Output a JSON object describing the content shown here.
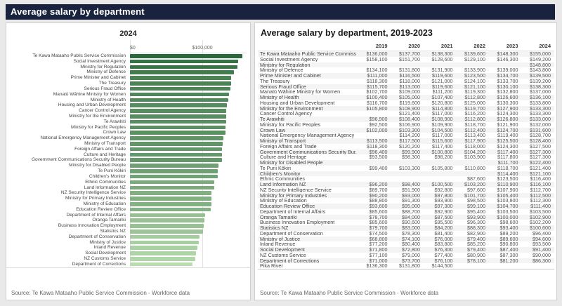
{
  "header": {
    "title": "Average salary by department"
  },
  "panels": {
    "chart": {
      "title": "2024",
      "source": "Source: Te Kawa Mataaho Public Service Commission - Workforce data"
    },
    "table": {
      "title": "Average salary by department, 2019-2023",
      "source": "Source: Te Kawa Mataaho Public Service Commission - Workforce data"
    }
  },
  "chart_data": [
    {
      "type": "bar",
      "orientation": "horizontal",
      "title": "2024",
      "xlim": [
        0,
        161000
      ],
      "x_ticks": [
        {
          "label": "$0",
          "value": 0,
          "align": "left"
        },
        {
          "label": "$100,000",
          "value": 100000,
          "align": "center"
        }
      ],
      "color_scale": {
        "dark": "#2B683C",
        "light": "#B9DDAF",
        "mapping": "value"
      },
      "categories": [
        "Te Kawa Mataaho Public Service Commission",
        "Social Investment Agency",
        "Ministry for Regulation",
        "Ministry of Defence",
        "Prime Minister and Cabinet",
        "The Treasury",
        "Serious Fraud Office",
        "Manatū Wāhine Ministry for Women",
        "Ministry of Health",
        "Housing and Urban Development",
        "Cancer Control Agency",
        "Ministry for the Environment",
        "Te Arawhiti",
        "Ministry for Pacific Peoples",
        "Crown Law",
        "National Emergency Management Agency",
        "Ministry of Transport",
        "Foreign Affairs and Trade",
        "Culture and Heritage",
        "Government Communications Security Bureau",
        "Ministry for Disabled People",
        "Te Puni Kōkiri",
        "Children's Monitor",
        "Ethnic Communities",
        "Land Information NZ",
        "NZ Security Intelligence Service",
        "Ministry for Primary Industries",
        "Ministry of Education",
        "Education Review Office",
        "Department of Internal Affairs",
        "Oranga Tamariki",
        "Business Innovation Employment",
        "Statistics NZ",
        "Department of Conservation",
        "Ministry of Justice",
        "Inland Revenue",
        "Social Development",
        "NZ Customs Service",
        "Department of Corrections"
      ],
      "values": [
        155000,
        149200,
        148800,
        143800,
        139500,
        139200,
        138300,
        137000,
        136100,
        133800,
        133300,
        133300,
        133000,
        132000,
        131600,
        128700,
        128400,
        127500,
        127300,
        127300,
        122400,
        121400,
        121100,
        116400,
        116100,
        112700,
        112500,
        112300,
        111400,
        103500,
        102900,
        102200,
        100600,
        96400,
        94600,
        93500,
        91400,
        90000,
        86300
      ]
    },
    {
      "type": "table",
      "title": "Average salary by department, 2019-2023",
      "columns": [
        "",
        "2019",
        "2020",
        "2021",
        "2022",
        "2023",
        "2024"
      ],
      "rows": [
        [
          "Te Kawa Mataaho Public Service Commiss",
          "$136,000",
          "$137,700",
          "$138,300",
          "$139,600",
          "$148,300",
          "$155,000"
        ],
        [
          "Social Investment Agency",
          "$158,100",
          "$151,700",
          "$128,600",
          "$129,100",
          "$146,300",
          "$149,200"
        ],
        [
          "Ministry for Regulation",
          "",
          "",
          "",
          "",
          "",
          "$148,800"
        ],
        [
          "Ministry of Defence",
          "$134,100",
          "$131,800",
          "$131,900",
          "$133,900",
          "$139,000",
          "$143,800"
        ],
        [
          "Prime Minister and Cabinet",
          "$111,000",
          "$116,500",
          "$119,600",
          "$123,500",
          "$134,700",
          "$139,500"
        ],
        [
          "The Treasury",
          "$118,300",
          "$118,000",
          "$121,000",
          "$124,100",
          "$133,700",
          "$139,200"
        ],
        [
          "Serious Fraud Office",
          "$115,700",
          "$113,000",
          "$119,600",
          "$121,100",
          "$130,100",
          "$138,300"
        ],
        [
          "Manatū Wāhine Ministry for Women",
          "$102,700",
          "$109,000",
          "$111,200",
          "$119,300",
          "$132,800",
          "$137,000"
        ],
        [
          "Ministry of Health",
          "$100,400",
          "$105,000",
          "$107,400",
          "$112,800",
          "$126,600",
          "$136,100"
        ],
        [
          "Housing and Urban Development",
          "$116,700",
          "$119,600",
          "$120,800",
          "$125,000",
          "$130,300",
          "$133,800"
        ],
        [
          "Ministry for the Environment",
          "$105,800",
          "$108,900",
          "$114,800",
          "$119,700",
          "$127,900",
          "$133,300"
        ],
        [
          "Cancer Control Agency",
          "",
          "$121,400",
          "$117,000",
          "$116,200",
          "$124,300",
          "$133,300"
        ],
        [
          "Te Arawhiti",
          "$96,900",
          "$108,400",
          "$108,900",
          "$112,800",
          "$126,800",
          "$133,000"
        ],
        [
          "Ministry for Pacific Peoples",
          "$92,500",
          "$106,900",
          "$109,900",
          "$118,700",
          "$121,900",
          "$132,000"
        ],
        [
          "Crown Law",
          "$102,000",
          "$103,300",
          "$104,500",
          "$112,400",
          "$124,700",
          "$131,600"
        ],
        [
          "National Emergency Management Agency",
          "",
          "$114,200",
          "$117,000",
          "$113,400",
          "$119,400",
          "$128,700"
        ],
        [
          "Ministry of Transport",
          "$113,500",
          "$117,500",
          "$115,600",
          "$117,900",
          "$125,500",
          "$128,400"
        ],
        [
          "Foreign Affairs and Trade",
          "$118,300",
          "$120,200",
          "$117,400",
          "$118,000",
          "$124,300",
          "$127,500"
        ],
        [
          "Government Communications Security Bur.",
          "$96,400",
          "$99,900",
          "$100,800",
          "$104,200",
          "$117,400",
          "$127,300"
        ],
        [
          "Culture and Heritage",
          "$93,500",
          "$98,300",
          "$98,200",
          "$103,900",
          "$117,800",
          "$127,300"
        ],
        [
          "Ministry for Disabled People",
          "",
          "",
          "",
          "",
          "$111,700",
          "$122,400"
        ],
        [
          "Te Puni Kōkiri",
          "$99,400",
          "$103,300",
          "$105,800",
          "$110,800",
          "$118,700",
          "$121,400"
        ],
        [
          "Children's Monitor",
          "",
          "",
          "",
          "",
          "$114,400",
          "$121,100"
        ],
        [
          "Ethnic Communities",
          "",
          "",
          "",
          "$87,600",
          "$123,500",
          "$116,400"
        ],
        [
          "Land Information NZ",
          "$96,200",
          "$98,400",
          "$100,500",
          "$103,200",
          "$110,900",
          "$116,100"
        ],
        [
          "NZ Security Intelligence Service",
          "$89,700",
          "$91,900",
          "$92,800",
          "$97,600",
          "$107,900",
          "$112,700"
        ],
        [
          "Ministry for Primary Industries",
          "$90,200",
          "$93,000",
          "$97,800",
          "$101,700",
          "$105,400",
          "$112,500"
        ],
        [
          "Ministry of Education",
          "$88,800",
          "$91,300",
          "$93,900",
          "$98,500",
          "$103,800",
          "$112,300"
        ],
        [
          "Education Review Office",
          "$93,600",
          "$95,000",
          "$97,300",
          "$99,100",
          "$104,700",
          "$111,400"
        ],
        [
          "Department of Internal Affairs",
          "$85,600",
          "$88,700",
          "$92,900",
          "$95,400",
          "$103,500",
          "$103,500"
        ],
        [
          "Oranga Tamariki",
          "$78,700",
          "$84,000",
          "$87,500",
          "$93,900",
          "$100,000",
          "$102,900"
        ],
        [
          "Business Innovation Employment",
          "$85,600",
          "$90,600",
          "$95,500",
          "$96,300",
          "$98,600",
          "$102,200"
        ],
        [
          "Statistics NZ",
          "$79,700",
          "$83,000",
          "$84,200",
          "$88,300",
          "$93,400",
          "$100,600"
        ],
        [
          "Department of Conservation",
          "$74,500",
          "$78,300",
          "$81,400",
          "$82,900",
          "$89,200",
          "$96,400"
        ],
        [
          "Ministry of Justice",
          "$68,800",
          "$74,100",
          "$76,000",
          "$79,400",
          "$89,600",
          "$94,600"
        ],
        [
          "Inland Revenue",
          "$77,200",
          "$80,400",
          "$83,800",
          "$85,200",
          "$90,800",
          "$93,500"
        ],
        [
          "Social Development",
          "$71,800",
          "$72,800",
          "$76,300",
          "$79,400",
          "$87,400",
          "$91,400"
        ],
        [
          "NZ Customs Service",
          "$77,100",
          "$79,000",
          "$77,400",
          "$80,900",
          "$87,300",
          "$90,000"
        ],
        [
          "Department of Corrections",
          "$71,000",
          "$73,700",
          "$76,100",
          "$78,100",
          "$81,200",
          "$86,300"
        ],
        [
          "Pika River",
          "$136,300",
          "$131,800",
          "$144,500",
          "",
          "",
          ""
        ]
      ]
    }
  ]
}
